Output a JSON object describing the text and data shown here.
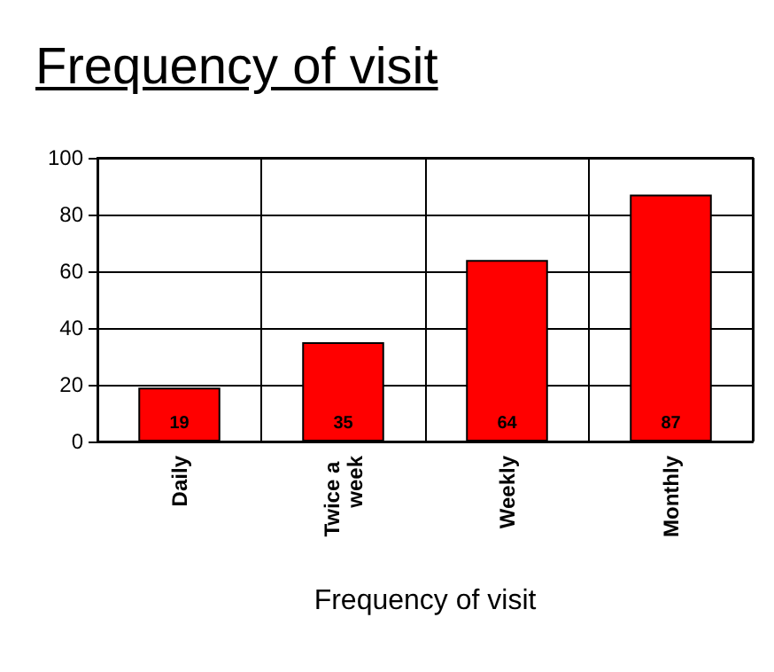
{
  "chart_data": {
    "type": "bar",
    "title": "Frequency of visit",
    "xlabel": "Frequency of visit",
    "categories": [
      "Daily",
      "Twice a week",
      "Weekly",
      "Monthly"
    ],
    "values": [
      19,
      35,
      64,
      87
    ],
    "color": "#ff0000",
    "ylim": [
      0,
      100
    ],
    "yticks": [
      0,
      20,
      40,
      60,
      80,
      100
    ],
    "grid": true,
    "data_labels": true
  }
}
